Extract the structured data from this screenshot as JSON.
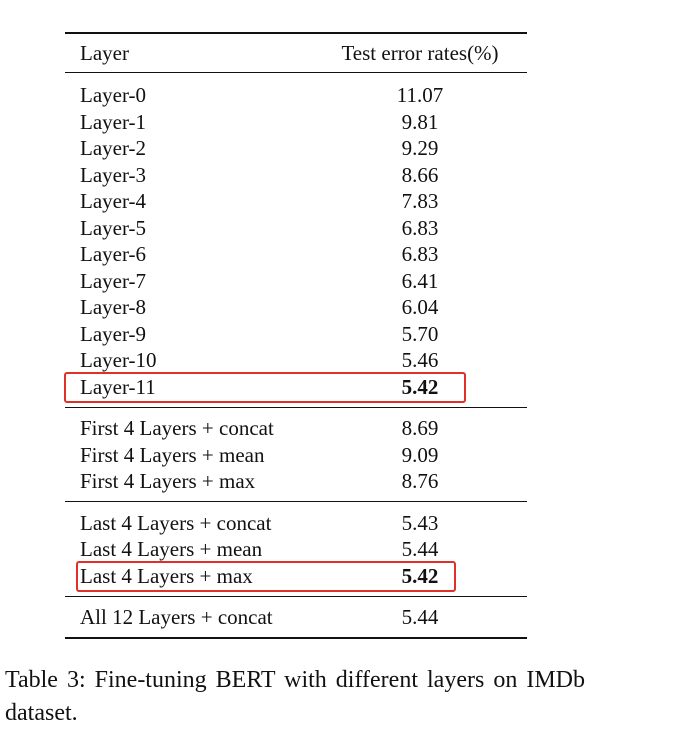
{
  "table": {
    "header": [
      "Layer",
      "Test error rates(%)"
    ],
    "groups": [
      [
        [
          "Layer-0",
          "11.07"
        ],
        [
          "Layer-1",
          "9.81"
        ],
        [
          "Layer-2",
          "9.29"
        ],
        [
          "Layer-3",
          "8.66"
        ],
        [
          "Layer-4",
          "7.83"
        ],
        [
          "Layer-5",
          "6.83"
        ],
        [
          "Layer-6",
          "6.83"
        ],
        [
          "Layer-7",
          "6.41"
        ],
        [
          "Layer-8",
          "6.04"
        ],
        [
          "Layer-9",
          "5.70"
        ],
        [
          "Layer-10",
          "5.46"
        ],
        [
          "Layer-11",
          "5.42"
        ]
      ],
      [
        [
          "First 4 Layers + concat",
          "8.69"
        ],
        [
          "First 4 Layers + mean",
          "9.09"
        ],
        [
          "First 4 Layers + max",
          "8.76"
        ]
      ],
      [
        [
          "Last 4 Layers + concat",
          "5.43"
        ],
        [
          "Last 4 Layers + mean",
          "5.44"
        ],
        [
          "Last 4 Layers + max",
          "5.42"
        ]
      ],
      [
        [
          "All 12 Layers + concat",
          "5.44"
        ]
      ]
    ]
  },
  "caption": "Table 3: Fine-tuning BERT with different layers on IMDb dataset."
}
